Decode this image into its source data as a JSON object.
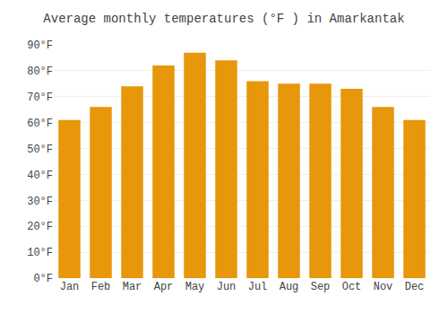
{
  "chart_data": {
    "type": "bar",
    "title": "Average monthly temperatures (°F ) in Amarkantak",
    "categories": [
      "Jan",
      "Feb",
      "Mar",
      "Apr",
      "May",
      "Jun",
      "Jul",
      "Aug",
      "Sep",
      "Oct",
      "Nov",
      "Dec"
    ],
    "values": [
      61,
      66,
      74,
      82,
      87,
      84,
      76,
      75,
      75,
      73,
      66,
      61
    ],
    "color": "#E8960A",
    "ylim": [
      0,
      90
    ],
    "yticks": [
      {
        "value": 0,
        "label": "0°F"
      },
      {
        "value": 10,
        "label": "10°F"
      },
      {
        "value": 20,
        "label": "20°F"
      },
      {
        "value": 30,
        "label": "30°F"
      },
      {
        "value": 40,
        "label": "40°F"
      },
      {
        "value": 50,
        "label": "50°F"
      },
      {
        "value": 60,
        "label": "60°F"
      },
      {
        "value": 70,
        "label": "70°F"
      },
      {
        "value": 80,
        "label": "80°F"
      },
      {
        "value": 90,
        "label": "90°F"
      }
    ],
    "grid": true
  }
}
